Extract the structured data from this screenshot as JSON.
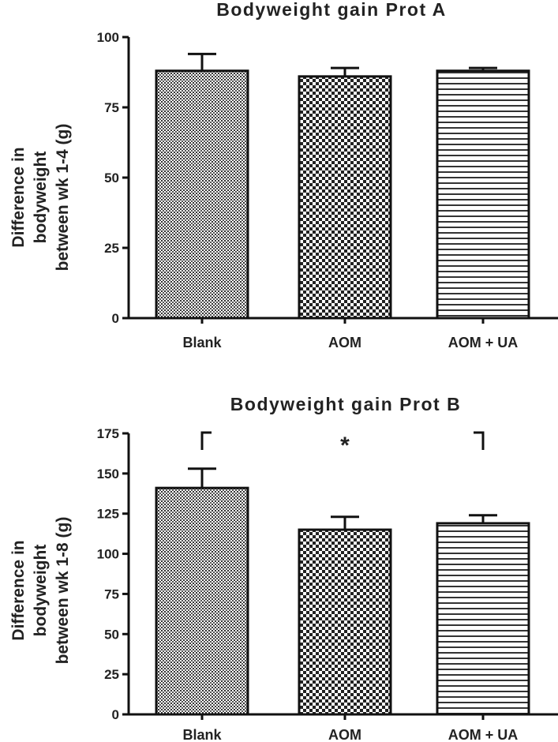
{
  "chart_data": [
    {
      "type": "bar",
      "title": "Bodyweight gain Prot A",
      "ylabel_lines": [
        "Difference in",
        "bodyweight",
        "between wk 1-4 (g)"
      ],
      "categories": [
        "Blank",
        "AOM",
        "AOM + UA"
      ],
      "values": [
        88,
        86,
        88
      ],
      "errors": [
        6,
        3,
        1
      ],
      "ylim": [
        0,
        100
      ],
      "yticks": [
        0,
        25,
        50,
        75,
        100
      ],
      "bar_patterns": [
        "dots",
        "checker",
        "hlines"
      ],
      "annotation": null
    },
    {
      "type": "bar",
      "title": "Bodyweight gain Prot B",
      "ylabel_lines": [
        "Difference in",
        "bodyweight",
        "between wk 1-8 (g)"
      ],
      "categories": [
        "Blank",
        "AOM",
        "AOM + UA"
      ],
      "values": [
        141,
        115,
        119
      ],
      "errors": [
        12,
        8,
        5
      ],
      "ylim": [
        0,
        175
      ],
      "yticks": [
        0,
        25,
        50,
        75,
        100,
        125,
        150,
        175
      ],
      "bar_patterns": [
        "dots",
        "checker",
        "hlines"
      ],
      "annotation": {
        "text": "*",
        "from": "Blank",
        "to": "AOM + UA"
      }
    }
  ]
}
